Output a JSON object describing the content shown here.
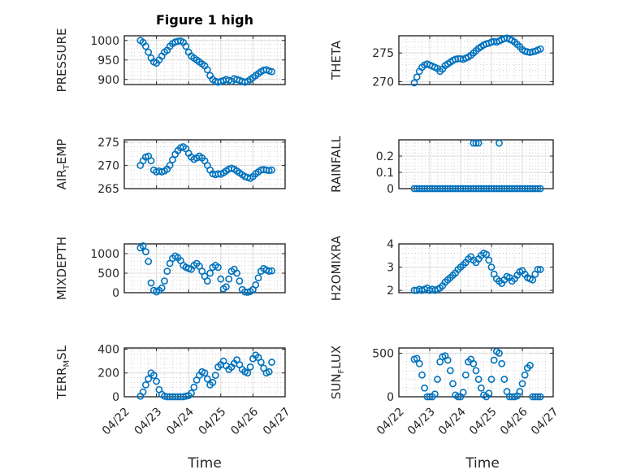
{
  "figure": {
    "title": "Figure 1 high",
    "xlabel": "Time"
  },
  "colors": {
    "marker": "#0072BD"
  },
  "chart_data": [
    {
      "type": "scatter",
      "ylabel": "PRESSURE",
      "ylabel_sub": "",
      "ylabel_suffix": "",
      "xlim": [
        "2024-04-22",
        "2024-04-27"
      ],
      "ylim": [
        887,
        1012
      ],
      "yticks": [
        900,
        950,
        1000
      ],
      "grid": true,
      "marker": "circle",
      "x": [
        "04/22 12:00",
        "04/22 14:00",
        "04/22 16:00",
        "04/22 18:00",
        "04/22 20:00",
        "04/22 22:00",
        "04/23 00:00",
        "04/23 02:00",
        "04/23 04:00",
        "04/23 06:00",
        "04/23 08:00",
        "04/23 10:00",
        "04/23 12:00",
        "04/23 14:00",
        "04/23 16:00",
        "04/23 18:00",
        "04/23 20:00",
        "04/23 22:00",
        "04/24 00:00",
        "04/24 02:00",
        "04/24 04:00",
        "04/24 06:00",
        "04/24 08:00",
        "04/24 10:00",
        "04/24 12:00",
        "04/24 14:00",
        "04/24 16:00",
        "04/24 18:00",
        "04/24 20:00",
        "04/24 22:00",
        "04/25 00:00",
        "04/25 02:00",
        "04/25 04:00",
        "04/25 06:00",
        "04/25 08:00",
        "04/25 10:00",
        "04/25 12:00",
        "04/25 14:00",
        "04/25 16:00",
        "04/25 18:00",
        "04/25 20:00",
        "04/25 22:00",
        "04/26 00:00",
        "04/26 02:00",
        "04/26 04:00",
        "04/26 06:00",
        "04/26 08:00",
        "04/26 10:00",
        "04/26 12:00",
        "04/26 14:00"
      ],
      "y": [
        1000,
        995,
        985,
        970,
        955,
        945,
        942,
        950,
        960,
        970,
        975,
        985,
        992,
        996,
        998,
        999,
        995,
        985,
        970,
        960,
        955,
        950,
        945,
        940,
        935,
        925,
        910,
        900,
        895,
        893,
        895,
        897,
        900,
        898,
        895,
        902,
        900,
        898,
        895,
        893,
        895,
        900,
        905,
        910,
        915,
        920,
        924,
        925,
        922,
        920
      ]
    },
    {
      "type": "scatter",
      "ylabel": "THETA",
      "ylabel_sub": "",
      "ylabel_suffix": "",
      "xlim": [
        "2024-04-22",
        "2024-04-27"
      ],
      "ylim": [
        269.5,
        278
      ],
      "yticks": [
        270,
        275
      ],
      "grid": true,
      "marker": "circle",
      "x": [
        "04/22 12:00",
        "04/22 14:00",
        "04/22 16:00",
        "04/22 18:00",
        "04/22 20:00",
        "04/22 22:00",
        "04/23 00:00",
        "04/23 02:00",
        "04/23 04:00",
        "04/23 06:00",
        "04/23 08:00",
        "04/23 10:00",
        "04/23 12:00",
        "04/23 14:00",
        "04/23 16:00",
        "04/23 18:00",
        "04/23 20:00",
        "04/23 22:00",
        "04/24 00:00",
        "04/24 02:00",
        "04/24 04:00",
        "04/24 06:00",
        "04/24 08:00",
        "04/24 10:00",
        "04/24 12:00",
        "04/24 14:00",
        "04/24 16:00",
        "04/24 18:00",
        "04/24 20:00",
        "04/24 22:00",
        "04/25 00:00",
        "04/25 02:00",
        "04/25 04:00",
        "04/25 06:00",
        "04/25 08:00",
        "04/25 10:00",
        "04/25 12:00",
        "04/25 14:00",
        "04/25 16:00",
        "04/25 18:00",
        "04/25 20:00",
        "04/25 22:00",
        "04/26 00:00",
        "04/26 02:00",
        "04/26 04:00",
        "04/26 06:00",
        "04/26 08:00",
        "04/26 10:00",
        "04/26 12:00",
        "04/26 14:00"
      ],
      "y": [
        269.8,
        270.8,
        271.8,
        272.5,
        272.9,
        273.1,
        272.9,
        272.7,
        272.5,
        272.3,
        271.8,
        272.2,
        272.8,
        273.1,
        273.4,
        273.7,
        273.9,
        274.0,
        274.0,
        273.9,
        274.1,
        274.3,
        274.6,
        275.0,
        275.4,
        275.8,
        276.1,
        276.4,
        276.6,
        276.7,
        276.9,
        277.0,
        276.9,
        277.1,
        277.3,
        277.5,
        277.6,
        277.4,
        277.2,
        276.9,
        276.5,
        276.1,
        275.6,
        275.3,
        275.2,
        275.1,
        275.2,
        275.3,
        275.5,
        275.7
      ]
    },
    {
      "type": "scatter",
      "ylabel": "AIR",
      "ylabel_sub": "T",
      "ylabel_suffix": "EMP",
      "xlim": [
        "2024-04-22",
        "2024-04-27"
      ],
      "ylim": [
        265,
        275.5
      ],
      "yticks": [
        265,
        270,
        275
      ],
      "grid": true,
      "marker": "circle",
      "x": [
        "04/22 12:00",
        "04/22 14:00",
        "04/22 16:00",
        "04/22 18:00",
        "04/22 20:00",
        "04/22 22:00",
        "04/23 00:00",
        "04/23 02:00",
        "04/23 04:00",
        "04/23 06:00",
        "04/23 08:00",
        "04/23 10:00",
        "04/23 12:00",
        "04/23 14:00",
        "04/23 16:00",
        "04/23 18:00",
        "04/23 20:00",
        "04/23 22:00",
        "04/24 00:00",
        "04/24 02:00",
        "04/24 04:00",
        "04/24 06:00",
        "04/24 08:00",
        "04/24 10:00",
        "04/24 12:00",
        "04/24 14:00",
        "04/24 16:00",
        "04/24 18:00",
        "04/24 20:00",
        "04/24 22:00",
        "04/25 00:00",
        "04/25 02:00",
        "04/25 04:00",
        "04/25 06:00",
        "04/25 08:00",
        "04/25 10:00",
        "04/25 12:00",
        "04/25 14:00",
        "04/25 16:00",
        "04/25 18:00",
        "04/25 20:00",
        "04/25 22:00",
        "04/26 00:00",
        "04/26 02:00",
        "04/26 04:00",
        "04/26 06:00",
        "04/26 08:00",
        "04/26 10:00",
        "04/26 12:00",
        "04/26 14:00"
      ],
      "y": [
        270.0,
        271.0,
        271.8,
        272.0,
        271.0,
        269.0,
        268.6,
        268.8,
        268.6,
        268.8,
        269.2,
        270.0,
        271.2,
        272.4,
        273.2,
        273.8,
        274.0,
        273.6,
        272.6,
        271.8,
        271.3,
        271.6,
        272.0,
        271.6,
        271.0,
        270.0,
        269.0,
        268.2,
        268.0,
        268.2,
        268.1,
        268.4,
        268.8,
        269.2,
        269.4,
        269.2,
        268.8,
        268.4,
        268.0,
        267.6,
        267.4,
        267.2,
        267.6,
        268.2,
        268.6,
        269.0,
        269.1,
        269.0,
        268.9,
        269.0
      ]
    },
    {
      "type": "scatter",
      "ylabel": "RAINFALL",
      "ylabel_sub": "",
      "ylabel_suffix": "",
      "xlim": [
        "2024-04-22",
        "2024-04-27"
      ],
      "ylim": [
        0,
        0.3
      ],
      "yticks": [
        0,
        0.1,
        0.2
      ],
      "grid": true,
      "marker": "circle",
      "x": [
        "04/22 12:00",
        "04/22 14:00",
        "04/22 16:00",
        "04/22 18:00",
        "04/22 20:00",
        "04/22 22:00",
        "04/23 00:00",
        "04/23 02:00",
        "04/23 04:00",
        "04/23 06:00",
        "04/23 08:00",
        "04/23 10:00",
        "04/23 12:00",
        "04/23 14:00",
        "04/23 16:00",
        "04/23 18:00",
        "04/23 20:00",
        "04/23 22:00",
        "04/24 00:00",
        "04/24 02:00",
        "04/24 04:00",
        "04/24 06:00",
        "04/24 08:00",
        "04/24 10:00",
        "04/24 12:00",
        "04/24 14:00",
        "04/24 16:00",
        "04/24 18:00",
        "04/24 20:00",
        "04/24 22:00",
        "04/25 00:00",
        "04/25 02:00",
        "04/25 04:00",
        "04/25 06:00",
        "04/25 08:00",
        "04/25 10:00",
        "04/25 12:00",
        "04/25 14:00",
        "04/25 16:00",
        "04/25 18:00",
        "04/25 20:00",
        "04/25 22:00",
        "04/26 00:00",
        "04/26 02:00",
        "04/26 04:00",
        "04/26 06:00",
        "04/26 08:00",
        "04/26 10:00",
        "04/26 12:00",
        "04/26 14:00",
        "04/24 10:00",
        "04/24 12:00",
        "04/24 14:00",
        "04/25 06:00"
      ],
      "y": [
        0,
        0,
        0,
        0,
        0,
        0,
        0,
        0,
        0,
        0,
        0,
        0,
        0,
        0,
        0,
        0,
        0,
        0,
        0,
        0,
        0,
        0,
        0,
        0,
        0,
        0,
        0,
        0,
        0,
        0,
        0,
        0,
        0,
        0,
        0,
        0,
        0,
        0,
        0,
        0,
        0,
        0,
        0,
        0,
        0,
        0,
        0,
        0,
        0,
        0,
        0.28,
        0.28,
        0.28,
        0.28
      ]
    },
    {
      "type": "scatter",
      "ylabel": "MIXDEPTH",
      "ylabel_sub": "",
      "ylabel_suffix": "",
      "xlim": [
        "2024-04-22",
        "2024-04-27"
      ],
      "ylim": [
        0,
        1250
      ],
      "yticks": [
        0,
        500,
        1000
      ],
      "grid": true,
      "marker": "circle",
      "x": [
        "04/22 12:00",
        "04/22 14:00",
        "04/22 16:00",
        "04/22 18:00",
        "04/22 20:00",
        "04/22 22:00",
        "04/23 00:00",
        "04/23 02:00",
        "04/23 04:00",
        "04/23 06:00",
        "04/23 08:00",
        "04/23 10:00",
        "04/23 12:00",
        "04/23 14:00",
        "04/23 16:00",
        "04/23 18:00",
        "04/23 20:00",
        "04/23 22:00",
        "04/24 00:00",
        "04/24 02:00",
        "04/24 04:00",
        "04/24 06:00",
        "04/24 08:00",
        "04/24 10:00",
        "04/24 12:00",
        "04/24 14:00",
        "04/24 16:00",
        "04/24 18:00",
        "04/24 20:00",
        "04/24 22:00",
        "04/25 00:00",
        "04/25 02:00",
        "04/25 04:00",
        "04/25 06:00",
        "04/25 08:00",
        "04/25 10:00",
        "04/25 12:00",
        "04/25 14:00",
        "04/25 16:00",
        "04/25 18:00",
        "04/25 20:00",
        "04/25 22:00",
        "04/26 00:00",
        "04/26 02:00",
        "04/26 04:00",
        "04/26 06:00",
        "04/26 08:00",
        "04/26 10:00",
        "04/26 12:00",
        "04/26 14:00"
      ],
      "y": [
        1150,
        1200,
        1050,
        800,
        250,
        60,
        20,
        60,
        120,
        300,
        550,
        750,
        880,
        940,
        900,
        820,
        700,
        650,
        620,
        600,
        700,
        750,
        680,
        550,
        420,
        300,
        500,
        650,
        700,
        650,
        350,
        100,
        150,
        350,
        550,
        600,
        500,
        300,
        80,
        20,
        10,
        30,
        80,
        200,
        380,
        550,
        620,
        580,
        550,
        560
      ]
    },
    {
      "type": "scatter",
      "ylabel": "H2OMIXRA",
      "ylabel_sub": "",
      "ylabel_suffix": "",
      "xlim": [
        "2024-04-22",
        "2024-04-27"
      ],
      "ylim": [
        1.9,
        4
      ],
      "yticks": [
        2,
        3,
        4
      ],
      "grid": true,
      "marker": "circle",
      "x": [
        "04/22 12:00",
        "04/22 14:00",
        "04/22 16:00",
        "04/22 18:00",
        "04/22 20:00",
        "04/22 22:00",
        "04/23 00:00",
        "04/23 02:00",
        "04/23 04:00",
        "04/23 06:00",
        "04/23 08:00",
        "04/23 10:00",
        "04/23 12:00",
        "04/23 14:00",
        "04/23 16:00",
        "04/23 18:00",
        "04/23 20:00",
        "04/23 22:00",
        "04/24 00:00",
        "04/24 02:00",
        "04/24 04:00",
        "04/24 06:00",
        "04/24 08:00",
        "04/24 10:00",
        "04/24 12:00",
        "04/24 14:00",
        "04/24 16:00",
        "04/24 18:00",
        "04/24 20:00",
        "04/24 22:00",
        "04/25 00:00",
        "04/25 02:00",
        "04/25 04:00",
        "04/25 06:00",
        "04/25 08:00",
        "04/25 10:00",
        "04/25 12:00",
        "04/25 14:00",
        "04/25 16:00",
        "04/25 18:00",
        "04/25 20:00",
        "04/25 22:00",
        "04/26 00:00",
        "04/26 02:00",
        "04/26 04:00",
        "04/26 06:00",
        "04/26 08:00",
        "04/26 10:00",
        "04/26 12:00",
        "04/26 14:00"
      ],
      "y": [
        2.0,
        2.0,
        2.05,
        2.0,
        2.05,
        2.1,
        2.0,
        2.05,
        2.0,
        2.05,
        2.1,
        2.2,
        2.35,
        2.45,
        2.55,
        2.65,
        2.75,
        2.9,
        3.0,
        3.1,
        3.2,
        3.35,
        3.45,
        3.3,
        3.2,
        3.35,
        3.5,
        3.6,
        3.55,
        3.3,
        3.0,
        2.7,
        2.5,
        2.4,
        2.3,
        2.45,
        2.6,
        2.55,
        2.4,
        2.5,
        2.65,
        2.8,
        2.85,
        2.7,
        2.55,
        2.5,
        2.45,
        2.7,
        2.9,
        2.9
      ]
    },
    {
      "type": "scatter",
      "ylabel": "TERR",
      "ylabel_sub": "M",
      "ylabel_suffix": "SL",
      "xlim": [
        "2024-04-22",
        "2024-04-27"
      ],
      "ylim": [
        0,
        410
      ],
      "yticks": [
        0,
        200,
        400
      ],
      "grid": true,
      "marker": "circle",
      "x": [
        "04/22 12:00",
        "04/22 14:00",
        "04/22 16:00",
        "04/22 18:00",
        "04/22 20:00",
        "04/22 22:00",
        "04/23 00:00",
        "04/23 02:00",
        "04/23 04:00",
        "04/23 06:00",
        "04/23 08:00",
        "04/23 10:00",
        "04/23 12:00",
        "04/23 14:00",
        "04/23 16:00",
        "04/23 18:00",
        "04/23 20:00",
        "04/23 22:00",
        "04/24 00:00",
        "04/24 02:00",
        "04/24 04:00",
        "04/24 06:00",
        "04/24 08:00",
        "04/24 10:00",
        "04/24 12:00",
        "04/24 14:00",
        "04/24 16:00",
        "04/24 18:00",
        "04/24 20:00",
        "04/24 22:00",
        "04/25 00:00",
        "04/25 02:00",
        "04/25 04:00",
        "04/25 06:00",
        "04/25 08:00",
        "04/25 10:00",
        "04/25 12:00",
        "04/25 14:00",
        "04/25 16:00",
        "04/25 18:00",
        "04/25 20:00",
        "04/25 22:00",
        "04/26 00:00",
        "04/26 02:00",
        "04/26 04:00",
        "04/26 06:00",
        "04/26 08:00",
        "04/26 10:00",
        "04/26 12:00",
        "04/26 14:00"
      ],
      "y": [
        5,
        40,
        100,
        150,
        200,
        180,
        130,
        60,
        20,
        5,
        0,
        0,
        0,
        0,
        0,
        0,
        0,
        5,
        10,
        30,
        80,
        140,
        180,
        210,
        200,
        150,
        100,
        120,
        180,
        250,
        270,
        300,
        260,
        230,
        250,
        280,
        310,
        270,
        230,
        210,
        200,
        250,
        320,
        350,
        330,
        290,
        240,
        200,
        210,
        290
      ]
    },
    {
      "type": "scatter",
      "ylabel": "SUN",
      "ylabel_sub": "F",
      "ylabel_suffix": "LUX",
      "xlim": [
        "2024-04-22",
        "2024-04-27"
      ],
      "ylim": [
        0,
        560
      ],
      "yticks": [
        0,
        500
      ],
      "grid": true,
      "marker": "circle",
      "x": [
        "04/22 12:00",
        "04/22 14:00",
        "04/22 16:00",
        "04/22 18:00",
        "04/22 20:00",
        "04/22 22:00",
        "04/23 00:00",
        "04/23 02:00",
        "04/23 04:00",
        "04/23 06:00",
        "04/23 08:00",
        "04/23 10:00",
        "04/23 12:00",
        "04/23 14:00",
        "04/23 16:00",
        "04/23 18:00",
        "04/23 20:00",
        "04/23 22:00",
        "04/24 00:00",
        "04/24 02:00",
        "04/24 04:00",
        "04/24 06:00",
        "04/24 08:00",
        "04/24 10:00",
        "04/24 12:00",
        "04/24 14:00",
        "04/24 16:00",
        "04/24 18:00",
        "04/24 20:00",
        "04/24 22:00",
        "04/25 00:00",
        "04/25 02:00",
        "04/25 04:00",
        "04/25 06:00",
        "04/25 08:00",
        "04/25 10:00",
        "04/25 12:00",
        "04/25 14:00",
        "04/25 16:00",
        "04/25 18:00",
        "04/25 20:00",
        "04/25 22:00",
        "04/26 00:00",
        "04/26 02:00",
        "04/26 04:00",
        "04/26 06:00",
        "04/26 08:00",
        "04/26 10:00",
        "04/26 12:00",
        "04/26 14:00"
      ],
      "y": [
        430,
        440,
        380,
        250,
        100,
        0,
        0,
        0,
        30,
        200,
        400,
        460,
        470,
        420,
        300,
        150,
        20,
        0,
        0,
        50,
        250,
        400,
        430,
        380,
        300,
        200,
        100,
        20,
        0,
        40,
        200,
        420,
        520,
        500,
        380,
        200,
        60,
        0,
        0,
        0,
        10,
        60,
        150,
        250,
        330,
        360,
        0,
        0,
        0,
        0
      ]
    }
  ],
  "x_ticks": [
    "04/22",
    "04/23",
    "04/24",
    "04/25",
    "04/26",
    "04/27"
  ]
}
